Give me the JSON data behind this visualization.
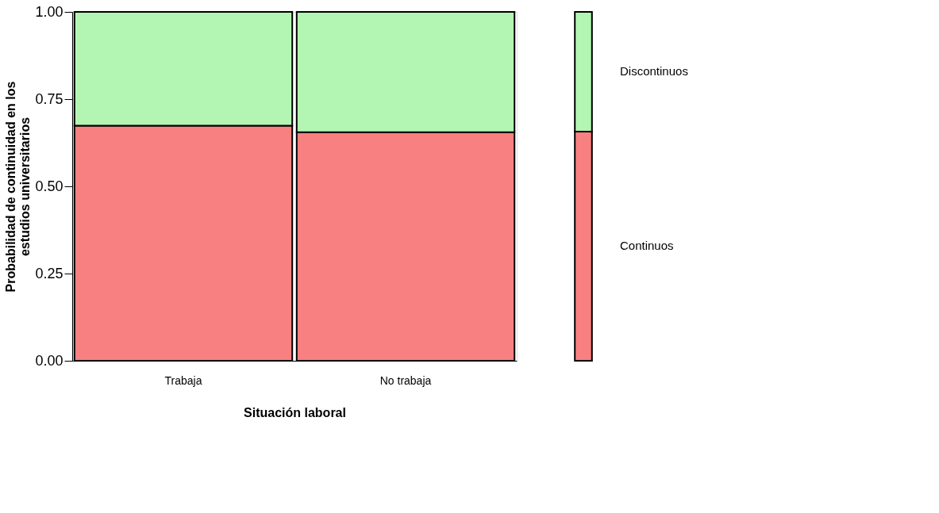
{
  "chart_data": [
    {
      "type": "bar",
      "stacked": true,
      "xlabel": "Situación laboral",
      "ylabel": "Probabilidad de continuidad en los estudios universitarios",
      "categories": [
        "Trabaja",
        "No trabaja"
      ],
      "series": [
        {
          "name": "Continuos",
          "color": "#f88080",
          "values": [
            0.674,
            0.655
          ]
        },
        {
          "name": "Discontinuos",
          "color": "#b3f5b3",
          "values": [
            0.326,
            0.345
          ]
        }
      ],
      "ylim": [
        0,
        1
      ],
      "yticks": [
        {
          "value": 0,
          "label": "0.00"
        },
        {
          "value": 0.25,
          "label": "0.25"
        },
        {
          "value": 0.5,
          "label": "0.50"
        },
        {
          "value": 0.75,
          "label": "0.75"
        },
        {
          "value": 1,
          "label": "1.00"
        }
      ],
      "grid": false
    },
    {
      "type": "bar",
      "stacked": true,
      "categories": [
        null
      ],
      "series": [
        {
          "color": "#f88080",
          "values": [
            0.657
          ]
        },
        {
          "color": "#b3f5b3",
          "values": [
            0.343
          ]
        }
      ],
      "ylim": [
        0,
        1
      ],
      "tick_labels": false,
      "grid": false
    }
  ]
}
